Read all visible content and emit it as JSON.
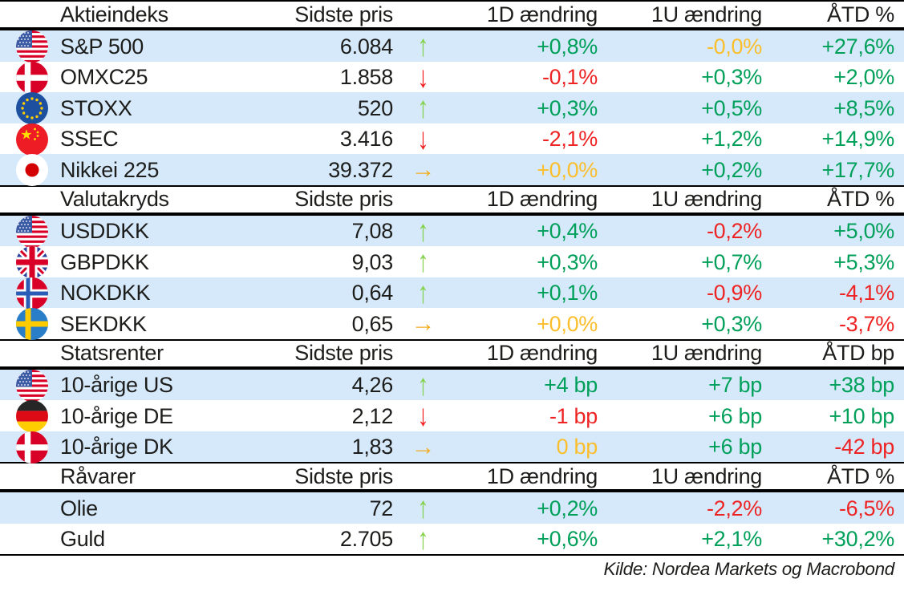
{
  "table": {
    "sections": [
      {
        "title": "Aktieindeks",
        "col_price": "Sidste pris",
        "col_1d": "1D ændring",
        "col_1u": "1U ændring",
        "col_ytd": "ÅTD %",
        "rows": [
          {
            "flag": "us",
            "name": "S&P 500",
            "price": "6.084",
            "trend": "up",
            "chg_1d": {
              "text": "+0,8%",
              "color": "green"
            },
            "chg_1u": {
              "text": "-0,0%",
              "color": "amber"
            },
            "chg_ytd": {
              "text": "+27,6%",
              "color": "green"
            }
          },
          {
            "flag": "dk",
            "name": "OMXC25",
            "price": "1.858",
            "trend": "down",
            "chg_1d": {
              "text": "-0,1%",
              "color": "red"
            },
            "chg_1u": {
              "text": "+0,3%",
              "color": "green"
            },
            "chg_ytd": {
              "text": "+2,0%",
              "color": "green"
            }
          },
          {
            "flag": "eu",
            "name": "STOXX",
            "price": "520",
            "trend": "up",
            "chg_1d": {
              "text": "+0,3%",
              "color": "green"
            },
            "chg_1u": {
              "text": "+0,5%",
              "color": "green"
            },
            "chg_ytd": {
              "text": "+8,5%",
              "color": "green"
            }
          },
          {
            "flag": "cn",
            "name": "SSEC",
            "price": "3.416",
            "trend": "down",
            "chg_1d": {
              "text": "-2,1%",
              "color": "red"
            },
            "chg_1u": {
              "text": "+1,2%",
              "color": "green"
            },
            "chg_ytd": {
              "text": "+14,9%",
              "color": "green"
            }
          },
          {
            "flag": "jp",
            "name": "Nikkei 225",
            "price": "39.372",
            "trend": "right",
            "chg_1d": {
              "text": "+0,0%",
              "color": "amber"
            },
            "chg_1u": {
              "text": "+0,2%",
              "color": "green"
            },
            "chg_ytd": {
              "text": "+17,7%",
              "color": "green"
            }
          }
        ]
      },
      {
        "title": "Valutakryds",
        "col_price": "Sidste pris",
        "col_1d": "1D ændring",
        "col_1u": "1U ændring",
        "col_ytd": "ÅTD %",
        "rows": [
          {
            "flag": "us",
            "name": "USDDKK",
            "price": "7,08",
            "trend": "up",
            "chg_1d": {
              "text": "+0,4%",
              "color": "green"
            },
            "chg_1u": {
              "text": "-0,2%",
              "color": "red"
            },
            "chg_ytd": {
              "text": "+5,0%",
              "color": "green"
            }
          },
          {
            "flag": "gb",
            "name": "GBPDKK",
            "price": "9,03",
            "trend": "up",
            "chg_1d": {
              "text": "+0,3%",
              "color": "green"
            },
            "chg_1u": {
              "text": "+0,7%",
              "color": "green"
            },
            "chg_ytd": {
              "text": "+5,3%",
              "color": "green"
            }
          },
          {
            "flag": "no",
            "name": "NOKDKK",
            "price": "0,64",
            "trend": "up",
            "chg_1d": {
              "text": "+0,1%",
              "color": "green"
            },
            "chg_1u": {
              "text": "-0,9%",
              "color": "red"
            },
            "chg_ytd": {
              "text": "-4,1%",
              "color": "red"
            }
          },
          {
            "flag": "se",
            "name": "SEKDKK",
            "price": "0,65",
            "trend": "right",
            "chg_1d": {
              "text": "+0,0%",
              "color": "amber"
            },
            "chg_1u": {
              "text": "+0,3%",
              "color": "green"
            },
            "chg_ytd": {
              "text": "-3,7%",
              "color": "red"
            }
          }
        ]
      },
      {
        "title": "Statsrenter",
        "col_price": "Sidste pris",
        "col_1d": "1D ændring",
        "col_1u": "1U ændring",
        "col_ytd": "ÅTD bp",
        "rows": [
          {
            "flag": "us",
            "name": "10-årige US",
            "price": "4,26",
            "trend": "up",
            "chg_1d": {
              "text": "+4 bp",
              "color": "green"
            },
            "chg_1u": {
              "text": "+7 bp",
              "color": "green"
            },
            "chg_ytd": {
              "text": "+38 bp",
              "color": "green"
            }
          },
          {
            "flag": "de",
            "name": "10-årige DE",
            "price": "2,12",
            "trend": "down",
            "chg_1d": {
              "text": "-1 bp",
              "color": "red"
            },
            "chg_1u": {
              "text": "+6 bp",
              "color": "green"
            },
            "chg_ytd": {
              "text": "+10 bp",
              "color": "green"
            }
          },
          {
            "flag": "dk",
            "name": "10-årige DK",
            "price": "1,83",
            "trend": "right",
            "chg_1d": {
              "text": "0 bp",
              "color": "amber"
            },
            "chg_1u": {
              "text": "+6 bp",
              "color": "green"
            },
            "chg_ytd": {
              "text": "-42 bp",
              "color": "red"
            }
          }
        ]
      },
      {
        "title": "Råvarer",
        "col_price": "Sidste pris",
        "col_1d": "1D ændring",
        "col_1u": "1U ændring",
        "col_ytd": "ÅTD %",
        "rows": [
          {
            "flag": null,
            "name": "Olie",
            "price": "72",
            "trend": "up",
            "chg_1d": {
              "text": "+0,2%",
              "color": "green"
            },
            "chg_1u": {
              "text": "-2,2%",
              "color": "red"
            },
            "chg_ytd": {
              "text": "-6,5%",
              "color": "red"
            }
          },
          {
            "flag": null,
            "name": "Guld",
            "price": "2.705",
            "trend": "up",
            "chg_1d": {
              "text": "+0,6%",
              "color": "green"
            },
            "chg_1u": {
              "text": "+2,1%",
              "color": "green"
            },
            "chg_ytd": {
              "text": "+30,2%",
              "color": "green"
            }
          }
        ]
      }
    ]
  },
  "footer": {
    "source": "Kilde: Nordea Markets og Macrobond"
  },
  "colors": {
    "positive": "#00a05a",
    "negative": "#ee2424",
    "neutral": "#fbbe2c",
    "row_highlight": "#d5e9fb",
    "arrow_up": "#84d24c",
    "arrow_down": "#f41c1c",
    "arrow_flat": "#f2ad1f"
  }
}
